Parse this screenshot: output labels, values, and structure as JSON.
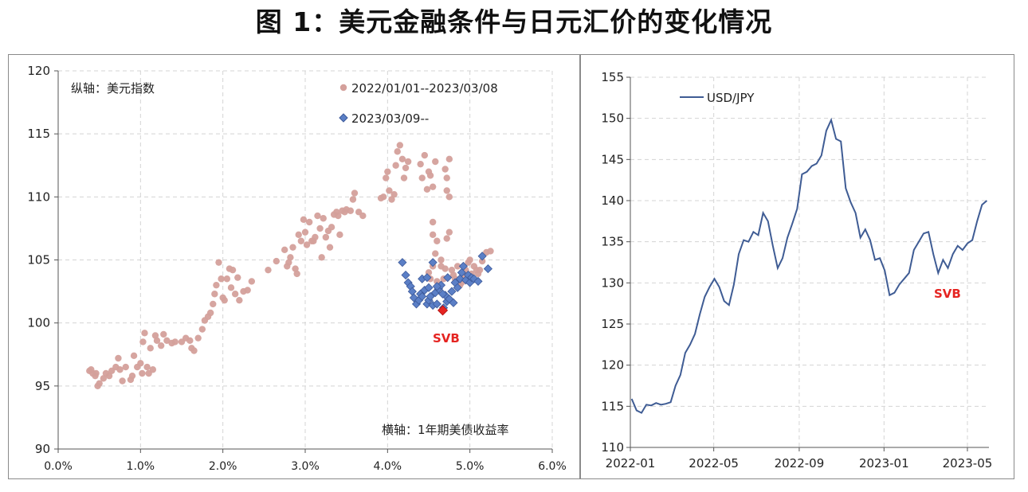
{
  "figure": {
    "title": "图 1：美元金融条件与日元汇价的变化情况"
  },
  "colors": {
    "pink": "#d4a09b",
    "blue": "#5b7fc6",
    "blue_edge": "#3d5a9a",
    "svb": "#e52421",
    "line": "#3f5c94",
    "grid": "#d4d4d4"
  },
  "chart_data": [
    {
      "type": "scatter",
      "notes": {
        "y_axis": "纵轴：美元指数",
        "x_axis": "横轴：1年期美债收益率"
      },
      "annotation": "SVB",
      "xlim": [
        0,
        6
      ],
      "ylim": [
        90,
        120
      ],
      "x_ticks": [
        "0.0%",
        "1.0%",
        "2.0%",
        "3.0%",
        "4.0%",
        "5.0%",
        "6.0%"
      ],
      "y_ticks": [
        "90",
        "95",
        "100",
        "105",
        "110",
        "115",
        "120"
      ],
      "series": [
        {
          "name": "2022/01/01--2023/03/08",
          "marker": "circle",
          "points": [
            [
              0.38,
              96.2
            ],
            [
              0.42,
              96.0
            ],
            [
              0.45,
              95.8
            ],
            [
              0.4,
              96.3
            ],
            [
              0.48,
              95.0
            ],
            [
              0.5,
              95.2
            ],
            [
              0.46,
              96.0
            ],
            [
              0.55,
              95.6
            ],
            [
              0.58,
              96.0
            ],
            [
              0.62,
              95.8
            ],
            [
              0.65,
              96.2
            ],
            [
              0.7,
              96.5
            ],
            [
              0.73,
              97.2
            ],
            [
              0.75,
              96.3
            ],
            [
              0.78,
              95.4
            ],
            [
              0.82,
              96.5
            ],
            [
              0.88,
              95.5
            ],
            [
              0.9,
              95.8
            ],
            [
              0.92,
              97.4
            ],
            [
              0.96,
              96.5
            ],
            [
              1.0,
              96.8
            ],
            [
              1.02,
              96.0
            ],
            [
              1.03,
              98.5
            ],
            [
              1.05,
              99.2
            ],
            [
              1.08,
              96.5
            ],
            [
              1.1,
              96.0
            ],
            [
              1.12,
              98.0
            ],
            [
              1.15,
              96.3
            ],
            [
              1.18,
              99.0
            ],
            [
              1.2,
              98.6
            ],
            [
              1.25,
              98.2
            ],
            [
              1.28,
              99.1
            ],
            [
              1.32,
              98.6
            ],
            [
              1.38,
              98.4
            ],
            [
              1.42,
              98.5
            ],
            [
              1.5,
              98.5
            ],
            [
              1.55,
              98.8
            ],
            [
              1.6,
              98.6
            ],
            [
              1.62,
              98.0
            ],
            [
              1.65,
              97.8
            ],
            [
              1.7,
              98.8
            ],
            [
              1.75,
              99.5
            ],
            [
              1.78,
              100.2
            ],
            [
              1.82,
              100.5
            ],
            [
              1.85,
              100.8
            ],
            [
              1.88,
              101.5
            ],
            [
              1.9,
              102.3
            ],
            [
              1.92,
              103.0
            ],
            [
              1.95,
              104.8
            ],
            [
              1.98,
              103.5
            ],
            [
              2.0,
              102.0
            ],
            [
              2.02,
              101.8
            ],
            [
              2.05,
              103.5
            ],
            [
              2.08,
              104.3
            ],
            [
              2.1,
              102.8
            ],
            [
              2.12,
              104.2
            ],
            [
              2.15,
              102.3
            ],
            [
              2.18,
              103.6
            ],
            [
              2.2,
              101.8
            ],
            [
              2.25,
              102.5
            ],
            [
              2.3,
              102.6
            ],
            [
              2.35,
              103.3
            ],
            [
              2.55,
              104.2
            ],
            [
              2.65,
              104.9
            ],
            [
              2.75,
              105.8
            ],
            [
              2.78,
              104.5
            ],
            [
              2.8,
              104.8
            ],
            [
              2.82,
              105.2
            ],
            [
              2.85,
              106.0
            ],
            [
              2.88,
              104.3
            ],
            [
              2.9,
              103.9
            ],
            [
              2.92,
              107.0
            ],
            [
              2.95,
              106.5
            ],
            [
              2.98,
              108.2
            ],
            [
              3.0,
              107.2
            ],
            [
              3.02,
              106.2
            ],
            [
              3.05,
              108.0
            ],
            [
              3.08,
              106.5
            ],
            [
              3.1,
              106.5
            ],
            [
              3.12,
              106.8
            ],
            [
              3.15,
              108.5
            ],
            [
              3.18,
              107.5
            ],
            [
              3.2,
              105.2
            ],
            [
              3.22,
              108.3
            ],
            [
              3.25,
              106.8
            ],
            [
              3.28,
              107.3
            ],
            [
              3.3,
              106.0
            ],
            [
              3.32,
              107.6
            ],
            [
              3.35,
              108.6
            ],
            [
              3.38,
              108.8
            ],
            [
              3.4,
              108.5
            ],
            [
              3.42,
              107.0
            ],
            [
              3.45,
              108.9
            ],
            [
              3.48,
              108.8
            ],
            [
              3.5,
              109.0
            ],
            [
              3.55,
              108.9
            ],
            [
              3.58,
              109.8
            ],
            [
              3.6,
              110.3
            ],
            [
              3.65,
              108.8
            ],
            [
              3.7,
              108.5
            ],
            [
              3.92,
              109.9
            ],
            [
              3.95,
              110.0
            ],
            [
              3.98,
              111.5
            ],
            [
              4.0,
              112.0
            ],
            [
              4.02,
              110.5
            ],
            [
              4.05,
              109.8
            ],
            [
              4.08,
              110.2
            ],
            [
              4.1,
              112.5
            ],
            [
              4.12,
              113.6
            ],
            [
              4.15,
              114.1
            ],
            [
              4.18,
              113.0
            ],
            [
              4.2,
              111.5
            ],
            [
              4.22,
              112.3
            ],
            [
              4.25,
              112.8
            ],
            [
              4.4,
              112.6
            ],
            [
              4.42,
              111.5
            ],
            [
              4.45,
              113.3
            ],
            [
              4.48,
              110.6
            ],
            [
              4.5,
              112.0
            ],
            [
              4.52,
              111.7
            ],
            [
              4.55,
              110.8
            ],
            [
              4.58,
              112.8
            ],
            [
              4.7,
              112.2
            ],
            [
              4.72,
              111.5
            ],
            [
              4.75,
              113.0
            ],
            [
              4.72,
              110.5
            ],
            [
              4.75,
              110.0
            ],
            [
              4.55,
              108.0
            ],
            [
              4.55,
              107.0
            ],
            [
              4.6,
              106.5
            ],
            [
              4.58,
              105.5
            ],
            [
              4.65,
              105.0
            ],
            [
              4.5,
              104.0
            ],
            [
              4.52,
              103.5
            ],
            [
              4.55,
              104.5
            ],
            [
              4.6,
              103.3
            ],
            [
              4.62,
              102.8
            ],
            [
              4.65,
              104.5
            ],
            [
              4.68,
              103.5
            ],
            [
              4.7,
              104.3
            ],
            [
              4.72,
              106.7
            ],
            [
              4.75,
              107.2
            ],
            [
              4.78,
              104.2
            ],
            [
              4.8,
              103.8
            ],
            [
              4.82,
              103.5
            ],
            [
              4.85,
              104.5
            ],
            [
              4.88,
              103.0
            ],
            [
              4.9,
              103.2
            ],
            [
              4.92,
              103.8
            ],
            [
              4.95,
              104.2
            ],
            [
              4.98,
              104.8
            ],
            [
              5.0,
              105.0
            ],
            [
              5.02,
              103.9
            ],
            [
              5.05,
              104.5
            ],
            [
              5.08,
              104.2
            ],
            [
              5.1,
              103.9
            ],
            [
              5.12,
              104.2
            ],
            [
              5.15,
              104.9
            ],
            [
              5.2,
              105.6
            ],
            [
              5.25,
              105.7
            ]
          ]
        },
        {
          "name": "2023/03/09--",
          "marker": "diamond",
          "points": [
            [
              4.18,
              104.8
            ],
            [
              4.22,
              103.8
            ],
            [
              4.25,
              103.2
            ],
            [
              4.28,
              102.9
            ],
            [
              4.3,
              102.5
            ],
            [
              4.32,
              102.0
            ],
            [
              4.35,
              101.5
            ],
            [
              4.38,
              101.8
            ],
            [
              4.4,
              102.3
            ],
            [
              4.42,
              103.5
            ],
            [
              4.45,
              102.6
            ],
            [
              4.48,
              101.5
            ],
            [
              4.5,
              101.8
            ],
            [
              4.52,
              102.1
            ],
            [
              4.55,
              101.4
            ],
            [
              4.58,
              102.4
            ],
            [
              4.6,
              101.5
            ],
            [
              4.62,
              102.7
            ],
            [
              4.65,
              103.0
            ],
            [
              4.68,
              101.2
            ],
            [
              4.7,
              102.2
            ],
            [
              4.72,
              101.7
            ],
            [
              4.75,
              101.9
            ],
            [
              4.78,
              102.5
            ],
            [
              4.8,
              101.6
            ],
            [
              4.82,
              103.2
            ],
            [
              4.85,
              102.8
            ],
            [
              4.88,
              103.5
            ],
            [
              4.9,
              104.0
            ],
            [
              4.92,
              104.5
            ],
            [
              4.95,
              103.4
            ],
            [
              4.98,
              103.8
            ],
            [
              5.0,
              103.2
            ],
            [
              5.02,
              103.6
            ],
            [
              5.05,
              103.5
            ],
            [
              5.1,
              103.3
            ],
            [
              5.15,
              105.3
            ],
            [
              5.22,
              104.3
            ],
            [
              4.55,
              104.8
            ],
            [
              4.48,
              103.6
            ],
            [
              4.42,
              102.1
            ],
            [
              4.6,
              102.9
            ],
            [
              4.67,
              102.3
            ],
            [
              4.73,
              103.6
            ],
            [
              4.5,
              102.8
            ]
          ]
        },
        {
          "name": "SVB",
          "marker": "diamond-red",
          "points": [
            [
              4.67,
              101.0
            ]
          ]
        }
      ]
    },
    {
      "type": "line",
      "xlim": [
        "2022-01",
        "2023-06"
      ],
      "ylim": [
        110,
        155
      ],
      "x_ticks": [
        "2022-01",
        "2022-05",
        "2022-09",
        "2023-01",
        "2023-05"
      ],
      "y_ticks": [
        "110",
        "115",
        "120",
        "125",
        "130",
        "135",
        "140",
        "145",
        "150",
        "155"
      ],
      "annotation": "SVB",
      "series": [
        {
          "name": "USD/JPY",
          "x": [
            "2022-01-03",
            "2022-01-10",
            "2022-01-17",
            "2022-01-24",
            "2022-01-31",
            "2022-02-07",
            "2022-02-14",
            "2022-02-21",
            "2022-02-28",
            "2022-03-07",
            "2022-03-14",
            "2022-03-21",
            "2022-03-28",
            "2022-04-04",
            "2022-04-11",
            "2022-04-18",
            "2022-04-25",
            "2022-05-02",
            "2022-05-09",
            "2022-05-16",
            "2022-05-23",
            "2022-05-30",
            "2022-06-06",
            "2022-06-13",
            "2022-06-20",
            "2022-06-27",
            "2022-07-04",
            "2022-07-11",
            "2022-07-18",
            "2022-07-25",
            "2022-08-01",
            "2022-08-08",
            "2022-08-15",
            "2022-08-22",
            "2022-08-29",
            "2022-09-05",
            "2022-09-12",
            "2022-09-19",
            "2022-09-26",
            "2022-10-03",
            "2022-10-10",
            "2022-10-17",
            "2022-10-24",
            "2022-10-31",
            "2022-11-07",
            "2022-11-14",
            "2022-11-21",
            "2022-11-28",
            "2022-12-05",
            "2022-12-12",
            "2022-12-19",
            "2022-12-26",
            "2023-01-02",
            "2023-01-09",
            "2023-01-16",
            "2023-01-23",
            "2023-01-30",
            "2023-02-06",
            "2023-02-13",
            "2023-02-20",
            "2023-02-27",
            "2023-03-06",
            "2023-03-13",
            "2023-03-20",
            "2023-03-27",
            "2023-04-03",
            "2023-04-10",
            "2023-04-17",
            "2023-04-24",
            "2023-05-01",
            "2023-05-08",
            "2023-05-15",
            "2023-05-22",
            "2023-05-29"
          ],
          "values": [
            115.9,
            114.5,
            114.2,
            115.2,
            115.1,
            115.4,
            115.2,
            115.3,
            115.5,
            117.5,
            118.8,
            121.5,
            122.5,
            123.8,
            126.2,
            128.3,
            129.5,
            130.5,
            129.5,
            127.8,
            127.3,
            129.8,
            133.5,
            135.2,
            135.0,
            136.2,
            135.8,
            138.5,
            137.5,
            134.5,
            131.8,
            133.0,
            135.5,
            137.2,
            139.0,
            143.2,
            143.5,
            144.2,
            144.5,
            145.5,
            148.5,
            149.8,
            147.5,
            147.2,
            141.5,
            139.8,
            138.5,
            135.5,
            136.5,
            135.2,
            132.8,
            133.0,
            131.5,
            128.5,
            128.8,
            129.8,
            130.5,
            131.2,
            134.0,
            135.0,
            136.0,
            136.2,
            133.5,
            131.2,
            132.8,
            131.8,
            133.5,
            134.5,
            134.0,
            134.8,
            135.2,
            137.5,
            139.5,
            140.0
          ]
        }
      ]
    }
  ]
}
